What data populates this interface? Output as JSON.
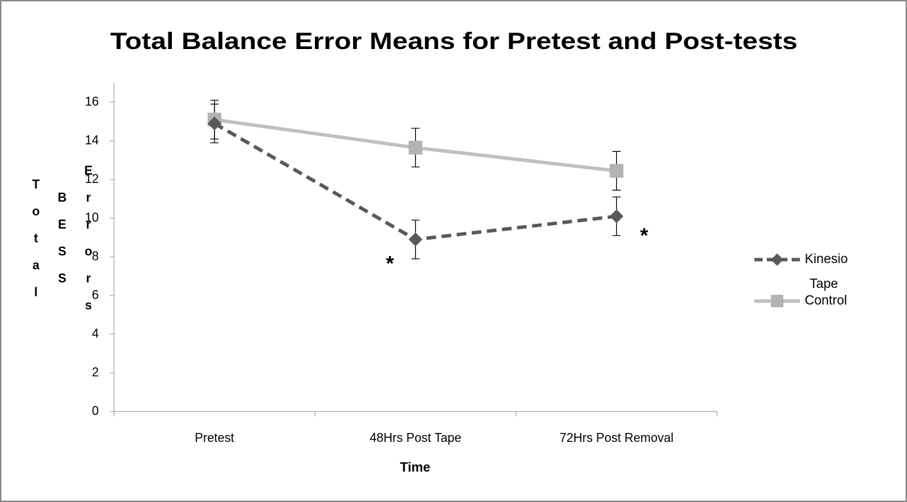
{
  "chart_data": {
    "type": "line",
    "title": "Total Balance Error Means for Pretest and Post-tests",
    "ylabel": "Total BESS Errors",
    "xlabel": "Time",
    "categories": [
      "Pretest",
      "48Hrs Post Tape",
      "72Hrs Post Removal"
    ],
    "series": [
      {
        "name": "Kinesio Tape",
        "color": "#595959",
        "dash": true,
        "marker": "diamond",
        "values": [
          14.9,
          8.9,
          10.1
        ],
        "errors": [
          1,
          1,
          1
        ]
      },
      {
        "name": "Control",
        "color": "#bfbfbf",
        "dash": false,
        "marker": "square",
        "values": [
          15.1,
          13.65,
          12.45
        ],
        "errors": [
          1,
          1,
          1
        ]
      }
    ],
    "annotations": [
      {
        "text": "*",
        "category": 1
      },
      {
        "text": "*",
        "category": 2
      }
    ],
    "ylim": [
      0,
      16
    ],
    "yticks": [
      0,
      2,
      4,
      6,
      8,
      10,
      12,
      14,
      16
    ],
    "legend": "right"
  }
}
